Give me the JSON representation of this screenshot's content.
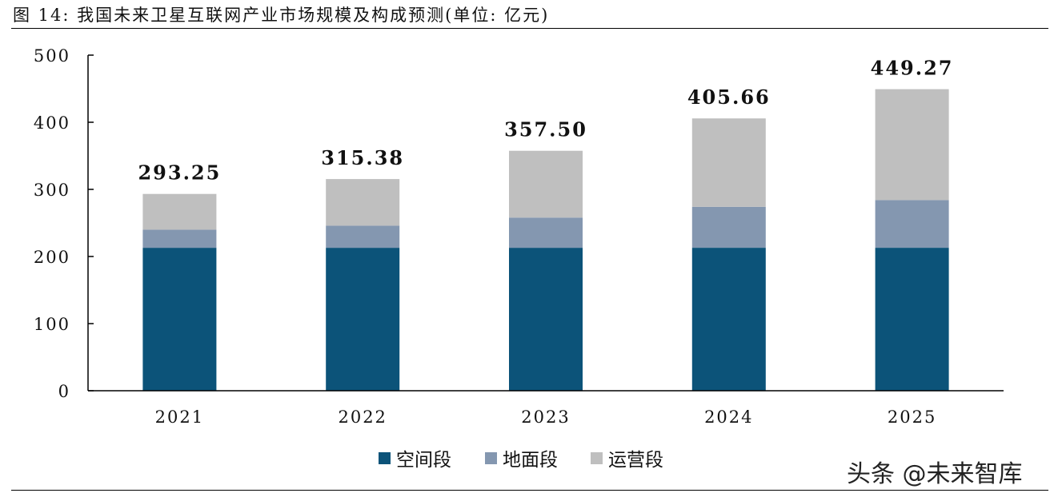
{
  "header": {
    "title": "图 14: 我国未来卫星互联网产业市场规模及构成预测(单位: 亿元)"
  },
  "watermark": "头条 @未来智库",
  "chart_data": {
    "type": "bar",
    "stacked": true,
    "categories": [
      "2021",
      "2022",
      "2023",
      "2024",
      "2025"
    ],
    "series": [
      {
        "name": "空间段",
        "color": "#0c5379",
        "values": [
          213,
          213,
          213,
          213,
          213
        ]
      },
      {
        "name": "地面段",
        "color": "#8497b0",
        "values": [
          27,
          33,
          45,
          61,
          71
        ]
      },
      {
        "name": "运营段",
        "color": "#bfbfbf",
        "values": [
          53.25,
          69.38,
          99.5,
          131.66,
          165.27
        ]
      }
    ],
    "totals": [
      "293.25",
      "315.38",
      "357.50",
      "405.66",
      "449.27"
    ],
    "ylim": [
      0,
      500
    ],
    "yticks": [
      "0",
      "100",
      "200",
      "300",
      "400",
      "500"
    ],
    "grid": false,
    "legend": "bottom-center"
  }
}
